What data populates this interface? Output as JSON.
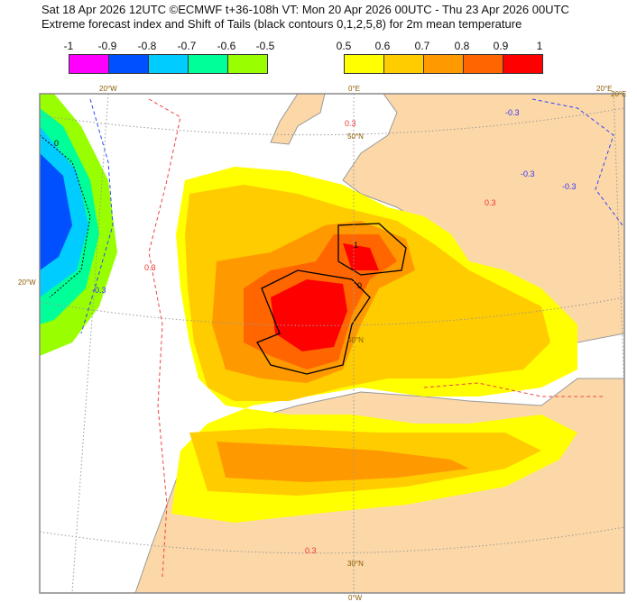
{
  "header": {
    "line1": "Sat 18 Apr 2026 12UTC ©ECMWF t+36-108h  VT: Mon 20 Apr 2026 00UTC - Thu 23 Apr 2026 00UTC",
    "line2": "Extreme forecast index and Shift of Tails (black contours 0,1,2,5,8) for 2m mean temperature"
  },
  "legend_negative": {
    "ticks": [
      "-1",
      "-0.9",
      "-0.8",
      "-0.7",
      "-0.6",
      "-0.5"
    ],
    "colors": [
      "#ff00ff",
      "#0050ff",
      "#00ccff",
      "#00ff99",
      "#99ff00"
    ]
  },
  "legend_positive": {
    "ticks": [
      "0.5",
      "0.6",
      "0.7",
      "0.8",
      "0.9",
      "1"
    ],
    "colors": [
      "#ffff00",
      "#ffcc00",
      "#ff9900",
      "#ff6600",
      "#ff0000"
    ]
  },
  "map": {
    "grid_labels": {
      "top_20w": "20°W",
      "top_0": "0°E",
      "top_20e": "20°E",
      "right_20e": "20°E",
      "lat_50n": "50°N",
      "lat_40n": "40°N",
      "lat_30n": "30°N",
      "left_20w": "20°W",
      "bottom_0": "0°W"
    },
    "contour_labels": {
      "pos_03_a": "0.3",
      "neg_03_a": "-0.3",
      "neg_03_b": "-0.3",
      "neg_03_c": "-0.3",
      "pos_03_b": "0.3",
      "pos_03_c": "0.3",
      "pos_03_d": "0.3",
      "neg_03_d": "-0.3",
      "sot_0": "0",
      "sot_1": "1",
      "sot_0b": "0"
    },
    "colors": {
      "land": "#fcd8a8",
      "sea": "#ffffff",
      "border": "#a0a0a0"
    }
  }
}
